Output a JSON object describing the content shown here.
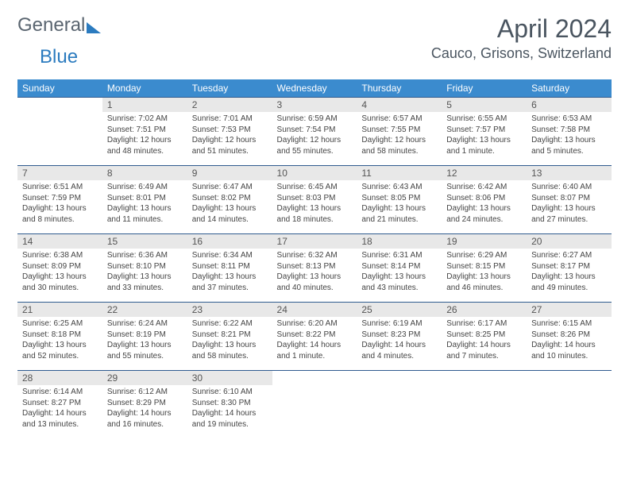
{
  "logo": {
    "text1": "General",
    "text2": "Blue"
  },
  "header": {
    "month_title": "April 2024",
    "location": "Cauco, Grisons, Switzerland"
  },
  "colors": {
    "header_bg": "#3b8bce",
    "header_text": "#ffffff",
    "daynum_bg": "#e8e8e8",
    "week_border": "#2f5b8f",
    "title_color": "#4a5560",
    "logo_gray": "#5a6570",
    "logo_blue": "#2b7bbf"
  },
  "typography": {
    "month_title_fontsize": 32,
    "location_fontsize": 18,
    "dow_fontsize": 12,
    "daynum_fontsize": 12,
    "body_fontsize": 10
  },
  "days_of_week": [
    "Sunday",
    "Monday",
    "Tuesday",
    "Wednesday",
    "Thursday",
    "Friday",
    "Saturday"
  ],
  "weeks": [
    [
      null,
      {
        "n": "1",
        "sr": "Sunrise: 7:02 AM",
        "ss": "Sunset: 7:51 PM",
        "dl": "Daylight: 12 hours and 48 minutes."
      },
      {
        "n": "2",
        "sr": "Sunrise: 7:01 AM",
        "ss": "Sunset: 7:53 PM",
        "dl": "Daylight: 12 hours and 51 minutes."
      },
      {
        "n": "3",
        "sr": "Sunrise: 6:59 AM",
        "ss": "Sunset: 7:54 PM",
        "dl": "Daylight: 12 hours and 55 minutes."
      },
      {
        "n": "4",
        "sr": "Sunrise: 6:57 AM",
        "ss": "Sunset: 7:55 PM",
        "dl": "Daylight: 12 hours and 58 minutes."
      },
      {
        "n": "5",
        "sr": "Sunrise: 6:55 AM",
        "ss": "Sunset: 7:57 PM",
        "dl": "Daylight: 13 hours and 1 minute."
      },
      {
        "n": "6",
        "sr": "Sunrise: 6:53 AM",
        "ss": "Sunset: 7:58 PM",
        "dl": "Daylight: 13 hours and 5 minutes."
      }
    ],
    [
      {
        "n": "7",
        "sr": "Sunrise: 6:51 AM",
        "ss": "Sunset: 7:59 PM",
        "dl": "Daylight: 13 hours and 8 minutes."
      },
      {
        "n": "8",
        "sr": "Sunrise: 6:49 AM",
        "ss": "Sunset: 8:01 PM",
        "dl": "Daylight: 13 hours and 11 minutes."
      },
      {
        "n": "9",
        "sr": "Sunrise: 6:47 AM",
        "ss": "Sunset: 8:02 PM",
        "dl": "Daylight: 13 hours and 14 minutes."
      },
      {
        "n": "10",
        "sr": "Sunrise: 6:45 AM",
        "ss": "Sunset: 8:03 PM",
        "dl": "Daylight: 13 hours and 18 minutes."
      },
      {
        "n": "11",
        "sr": "Sunrise: 6:43 AM",
        "ss": "Sunset: 8:05 PM",
        "dl": "Daylight: 13 hours and 21 minutes."
      },
      {
        "n": "12",
        "sr": "Sunrise: 6:42 AM",
        "ss": "Sunset: 8:06 PM",
        "dl": "Daylight: 13 hours and 24 minutes."
      },
      {
        "n": "13",
        "sr": "Sunrise: 6:40 AM",
        "ss": "Sunset: 8:07 PM",
        "dl": "Daylight: 13 hours and 27 minutes."
      }
    ],
    [
      {
        "n": "14",
        "sr": "Sunrise: 6:38 AM",
        "ss": "Sunset: 8:09 PM",
        "dl": "Daylight: 13 hours and 30 minutes."
      },
      {
        "n": "15",
        "sr": "Sunrise: 6:36 AM",
        "ss": "Sunset: 8:10 PM",
        "dl": "Daylight: 13 hours and 33 minutes."
      },
      {
        "n": "16",
        "sr": "Sunrise: 6:34 AM",
        "ss": "Sunset: 8:11 PM",
        "dl": "Daylight: 13 hours and 37 minutes."
      },
      {
        "n": "17",
        "sr": "Sunrise: 6:32 AM",
        "ss": "Sunset: 8:13 PM",
        "dl": "Daylight: 13 hours and 40 minutes."
      },
      {
        "n": "18",
        "sr": "Sunrise: 6:31 AM",
        "ss": "Sunset: 8:14 PM",
        "dl": "Daylight: 13 hours and 43 minutes."
      },
      {
        "n": "19",
        "sr": "Sunrise: 6:29 AM",
        "ss": "Sunset: 8:15 PM",
        "dl": "Daylight: 13 hours and 46 minutes."
      },
      {
        "n": "20",
        "sr": "Sunrise: 6:27 AM",
        "ss": "Sunset: 8:17 PM",
        "dl": "Daylight: 13 hours and 49 minutes."
      }
    ],
    [
      {
        "n": "21",
        "sr": "Sunrise: 6:25 AM",
        "ss": "Sunset: 8:18 PM",
        "dl": "Daylight: 13 hours and 52 minutes."
      },
      {
        "n": "22",
        "sr": "Sunrise: 6:24 AM",
        "ss": "Sunset: 8:19 PM",
        "dl": "Daylight: 13 hours and 55 minutes."
      },
      {
        "n": "23",
        "sr": "Sunrise: 6:22 AM",
        "ss": "Sunset: 8:21 PM",
        "dl": "Daylight: 13 hours and 58 minutes."
      },
      {
        "n": "24",
        "sr": "Sunrise: 6:20 AM",
        "ss": "Sunset: 8:22 PM",
        "dl": "Daylight: 14 hours and 1 minute."
      },
      {
        "n": "25",
        "sr": "Sunrise: 6:19 AM",
        "ss": "Sunset: 8:23 PM",
        "dl": "Daylight: 14 hours and 4 minutes."
      },
      {
        "n": "26",
        "sr": "Sunrise: 6:17 AM",
        "ss": "Sunset: 8:25 PM",
        "dl": "Daylight: 14 hours and 7 minutes."
      },
      {
        "n": "27",
        "sr": "Sunrise: 6:15 AM",
        "ss": "Sunset: 8:26 PM",
        "dl": "Daylight: 14 hours and 10 minutes."
      }
    ],
    [
      {
        "n": "28",
        "sr": "Sunrise: 6:14 AM",
        "ss": "Sunset: 8:27 PM",
        "dl": "Daylight: 14 hours and 13 minutes."
      },
      {
        "n": "29",
        "sr": "Sunrise: 6:12 AM",
        "ss": "Sunset: 8:29 PM",
        "dl": "Daylight: 14 hours and 16 minutes."
      },
      {
        "n": "30",
        "sr": "Sunrise: 6:10 AM",
        "ss": "Sunset: 8:30 PM",
        "dl": "Daylight: 14 hours and 19 minutes."
      },
      null,
      null,
      null,
      null
    ]
  ]
}
